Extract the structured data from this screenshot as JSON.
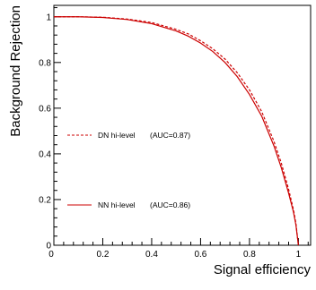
{
  "chart_data": {
    "type": "line",
    "xlabel": "Signal efficiency",
    "ylabel": "Background Rejection",
    "xlim": [
      0,
      1.05
    ],
    "ylim": [
      0,
      1.05
    ],
    "x_ticks": [
      "0",
      "0.2",
      "0.4",
      "0.6",
      "0.8",
      "1"
    ],
    "y_ticks": [
      "0",
      "0.2",
      "0.4",
      "0.6",
      "0.8",
      "1"
    ],
    "x_tick_values": [
      0,
      0.2,
      0.4,
      0.6,
      0.8,
      1.0
    ],
    "y_tick_values": [
      0,
      0.2,
      0.4,
      0.6,
      0.8,
      1.0
    ],
    "grid": false,
    "color": "#cc0000",
    "series": [
      {
        "name": "DN hi-level",
        "auc": "(AUC=0.87)",
        "style": "dashed",
        "x": [
          0,
          0.1,
          0.2,
          0.3,
          0.4,
          0.5,
          0.55,
          0.6,
          0.65,
          0.7,
          0.75,
          0.8,
          0.85,
          0.9,
          0.93,
          0.96,
          0.98,
          0.99,
          1.0
        ],
        "y": [
          1.0,
          1.0,
          0.998,
          0.99,
          0.975,
          0.945,
          0.925,
          0.895,
          0.86,
          0.815,
          0.755,
          0.68,
          0.585,
          0.455,
          0.36,
          0.245,
          0.155,
          0.095,
          0.0
        ]
      },
      {
        "name": "NN hi-level",
        "auc": "(AUC=0.86)",
        "style": "solid",
        "x": [
          0,
          0.1,
          0.2,
          0.3,
          0.4,
          0.5,
          0.55,
          0.6,
          0.65,
          0.7,
          0.75,
          0.8,
          0.85,
          0.9,
          0.93,
          0.96,
          0.98,
          0.99,
          1.0
        ],
        "y": [
          1.0,
          1.0,
          0.997,
          0.988,
          0.97,
          0.938,
          0.915,
          0.885,
          0.848,
          0.8,
          0.738,
          0.66,
          0.565,
          0.435,
          0.34,
          0.228,
          0.145,
          0.088,
          0.0
        ]
      }
    ]
  }
}
